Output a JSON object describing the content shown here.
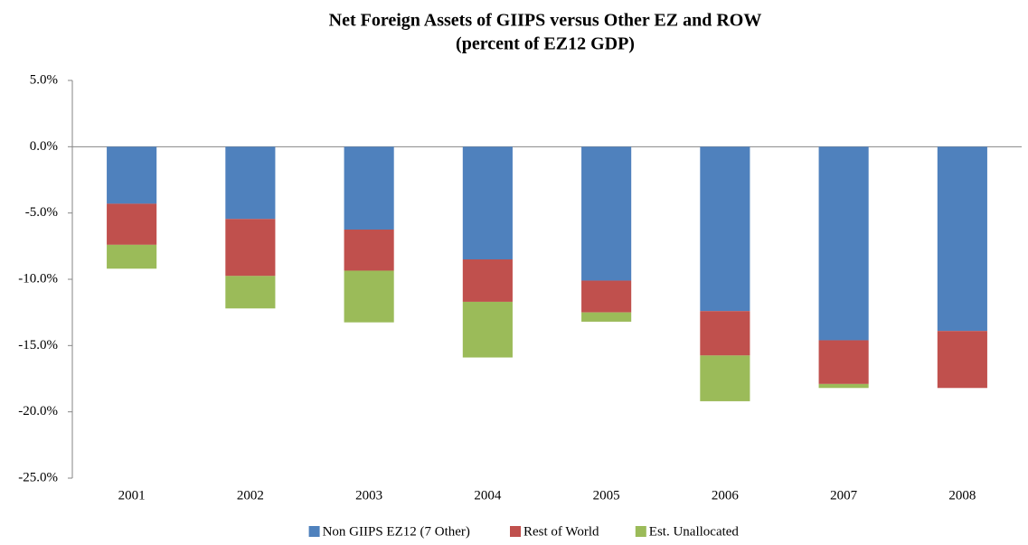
{
  "chart_data": {
    "type": "stacked_bar",
    "title": "Net Foreign Assets of GIIPS versus Other EZ and ROW",
    "subtitle": "(percent of EZ12 GDP)",
    "categories": [
      "2001",
      "2002",
      "2003",
      "2004",
      "2005",
      "2006",
      "2007",
      "2008"
    ],
    "series": [
      {
        "name": "Non GIIPS EZ12 (7 Other)",
        "color": "#4f81bd",
        "values": [
          -4.3,
          -5.45,
          -6.25,
          -8.5,
          -10.1,
          -12.4,
          -14.6,
          -13.9
        ]
      },
      {
        "name": "Rest of World",
        "color": "#c0504d",
        "values": [
          -3.1,
          -4.3,
          -3.1,
          -3.2,
          -2.4,
          -3.35,
          -3.3,
          -4.3
        ]
      },
      {
        "name": "Est. Unallocated",
        "color": "#9bbb59",
        "values": [
          -1.8,
          -2.45,
          -3.9,
          -4.2,
          -0.7,
          -3.45,
          -0.3,
          0
        ]
      }
    ],
    "ylim": [
      -25,
      5
    ],
    "yticks": [
      {
        "value": -25,
        "label": "-25.0%"
      },
      {
        "value": -20,
        "label": "-20.0%"
      },
      {
        "value": -15,
        "label": "-15.0%"
      },
      {
        "value": -10,
        "label": "-10.0%"
      },
      {
        "value": -5,
        "label": "-5.0%"
      },
      {
        "value": 0,
        "label": "0.0%"
      },
      {
        "value": 5,
        "label": "5.0%"
      }
    ],
    "legend": "bottom"
  }
}
